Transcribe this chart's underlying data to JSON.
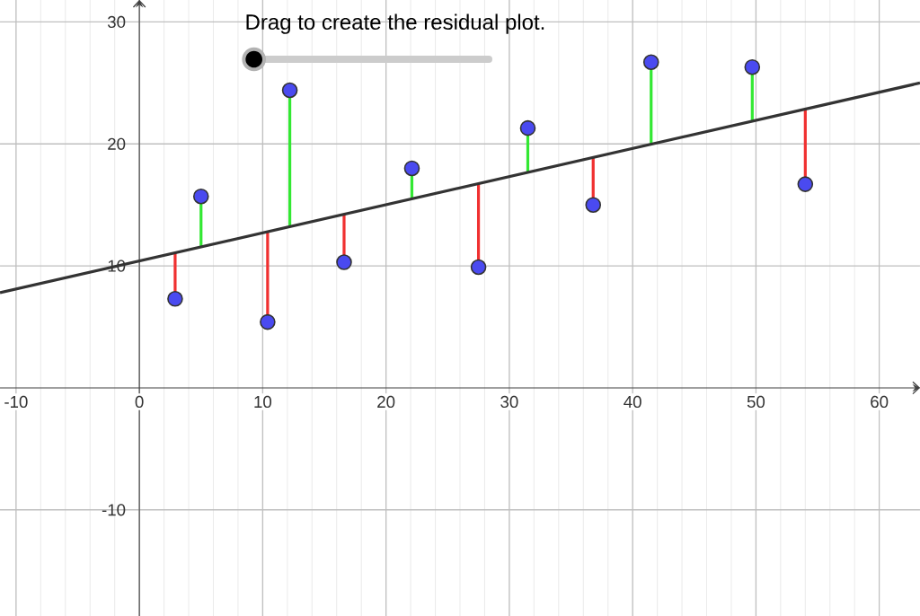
{
  "chart_data": {
    "type": "scatter",
    "annotations": [
      "Drag to create the residual plot."
    ],
    "series": [
      {
        "type": "line",
        "color": "#33e833",
        "x": [
          5.0,
          5.0,
          null,
          12.2,
          12.2,
          null,
          22.1,
          22.1,
          null,
          31.5,
          31.5,
          null,
          41.5,
          41.5,
          null,
          49.7,
          49.7
        ],
        "values": [
          15.7,
          11.6,
          null,
          24.4,
          13.2,
          null,
          18.0,
          15.5,
          null,
          21.3,
          17.7,
          null,
          26.7,
          20.0,
          null,
          26.3,
          21.8
        ]
      },
      {
        "type": "line",
        "color": "#f03030",
        "x": [
          2.9,
          2.9,
          null,
          10.4,
          10.4,
          null,
          16.6,
          16.6,
          null,
          27.5,
          27.5,
          null,
          36.8,
          36.8,
          null,
          54.0,
          54.0
        ],
        "values": [
          7.3,
          11.1,
          null,
          5.4,
          12.8,
          null,
          10.3,
          14.2,
          null,
          9.9,
          16.7,
          null,
          15.0,
          18.9,
          null,
          16.7,
          22.8
        ]
      },
      {
        "type": "line",
        "color": "#333333",
        "x": [
          -11.3,
          63.3
        ],
        "values": [
          7.8,
          25.0
        ]
      },
      {
        "color": "#4a4af0",
        "marker": "circle",
        "x": [
          2.9,
          5.0,
          10.4,
          12.2,
          16.6,
          22.1,
          27.5,
          31.5,
          36.8,
          41.5,
          49.7,
          54.0
        ],
        "values": [
          7.3,
          15.7,
          5.4,
          24.4,
          10.3,
          18.0,
          9.9,
          21.3,
          15.0,
          26.7,
          26.3,
          16.7
        ]
      }
    ],
    "xlim": [
      -11.3,
      63.3
    ],
    "ylim": [
      -18.7,
      31.8
    ],
    "xticks": [
      -10,
      0,
      10,
      20,
      30,
      40,
      50,
      60
    ],
    "yticks": [
      -10,
      10,
      20,
      30
    ],
    "grid": true
  }
}
